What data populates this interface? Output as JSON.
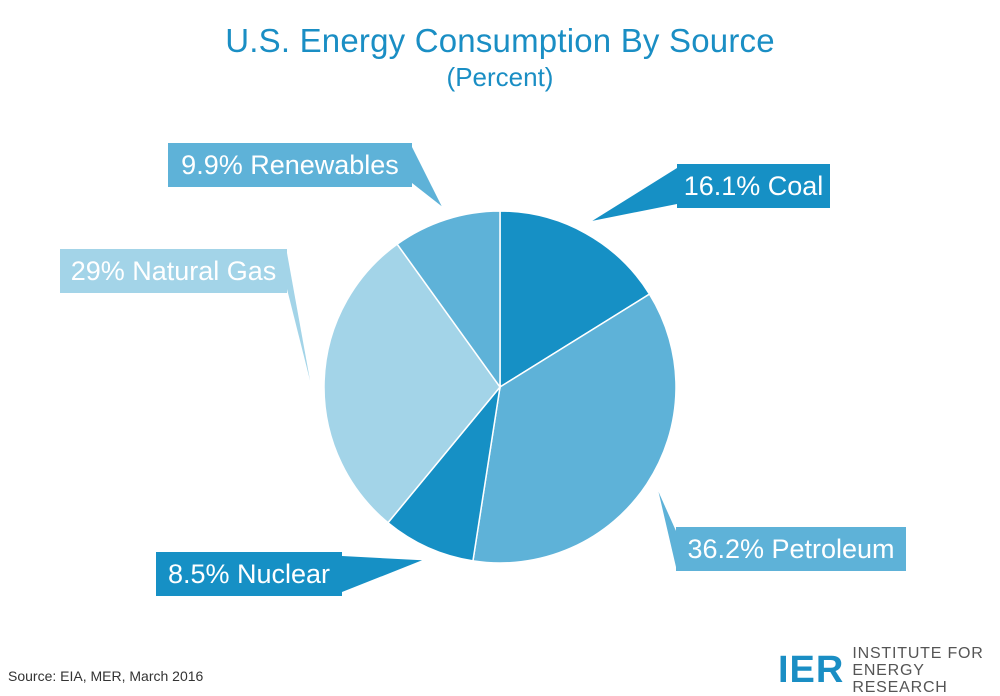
{
  "title": "U.S. Energy Consumption By Source",
  "subtitle": "(Percent)",
  "source": "Source: EIA, MER, March 2016",
  "logo": {
    "mark": "IER",
    "line1": "INSTITUTE FOR",
    "line2": "ENERGY RESEARCH"
  },
  "chart_data": {
    "type": "pie",
    "title": "U.S. Energy Consumption By Source",
    "subtitle": "(Percent)",
    "slices": [
      {
        "name": "Coal",
        "value": 16.1,
        "label": "16.1% Coal",
        "color": "#1690c5"
      },
      {
        "name": "Petroleum",
        "value": 36.2,
        "label": "36.2% Petroleum",
        "color": "#5eb2d8"
      },
      {
        "name": "Nuclear",
        "value": 8.5,
        "label": "8.5% Nuclear",
        "color": "#1690c5"
      },
      {
        "name": "Natural Gas",
        "value": 29,
        "label": "29% Natural Gas",
        "color": "#a3d4e8"
      },
      {
        "name": "Renewables",
        "value": 9.9,
        "label": "9.9% Renewables",
        "color": "#5eb2d8"
      }
    ]
  }
}
